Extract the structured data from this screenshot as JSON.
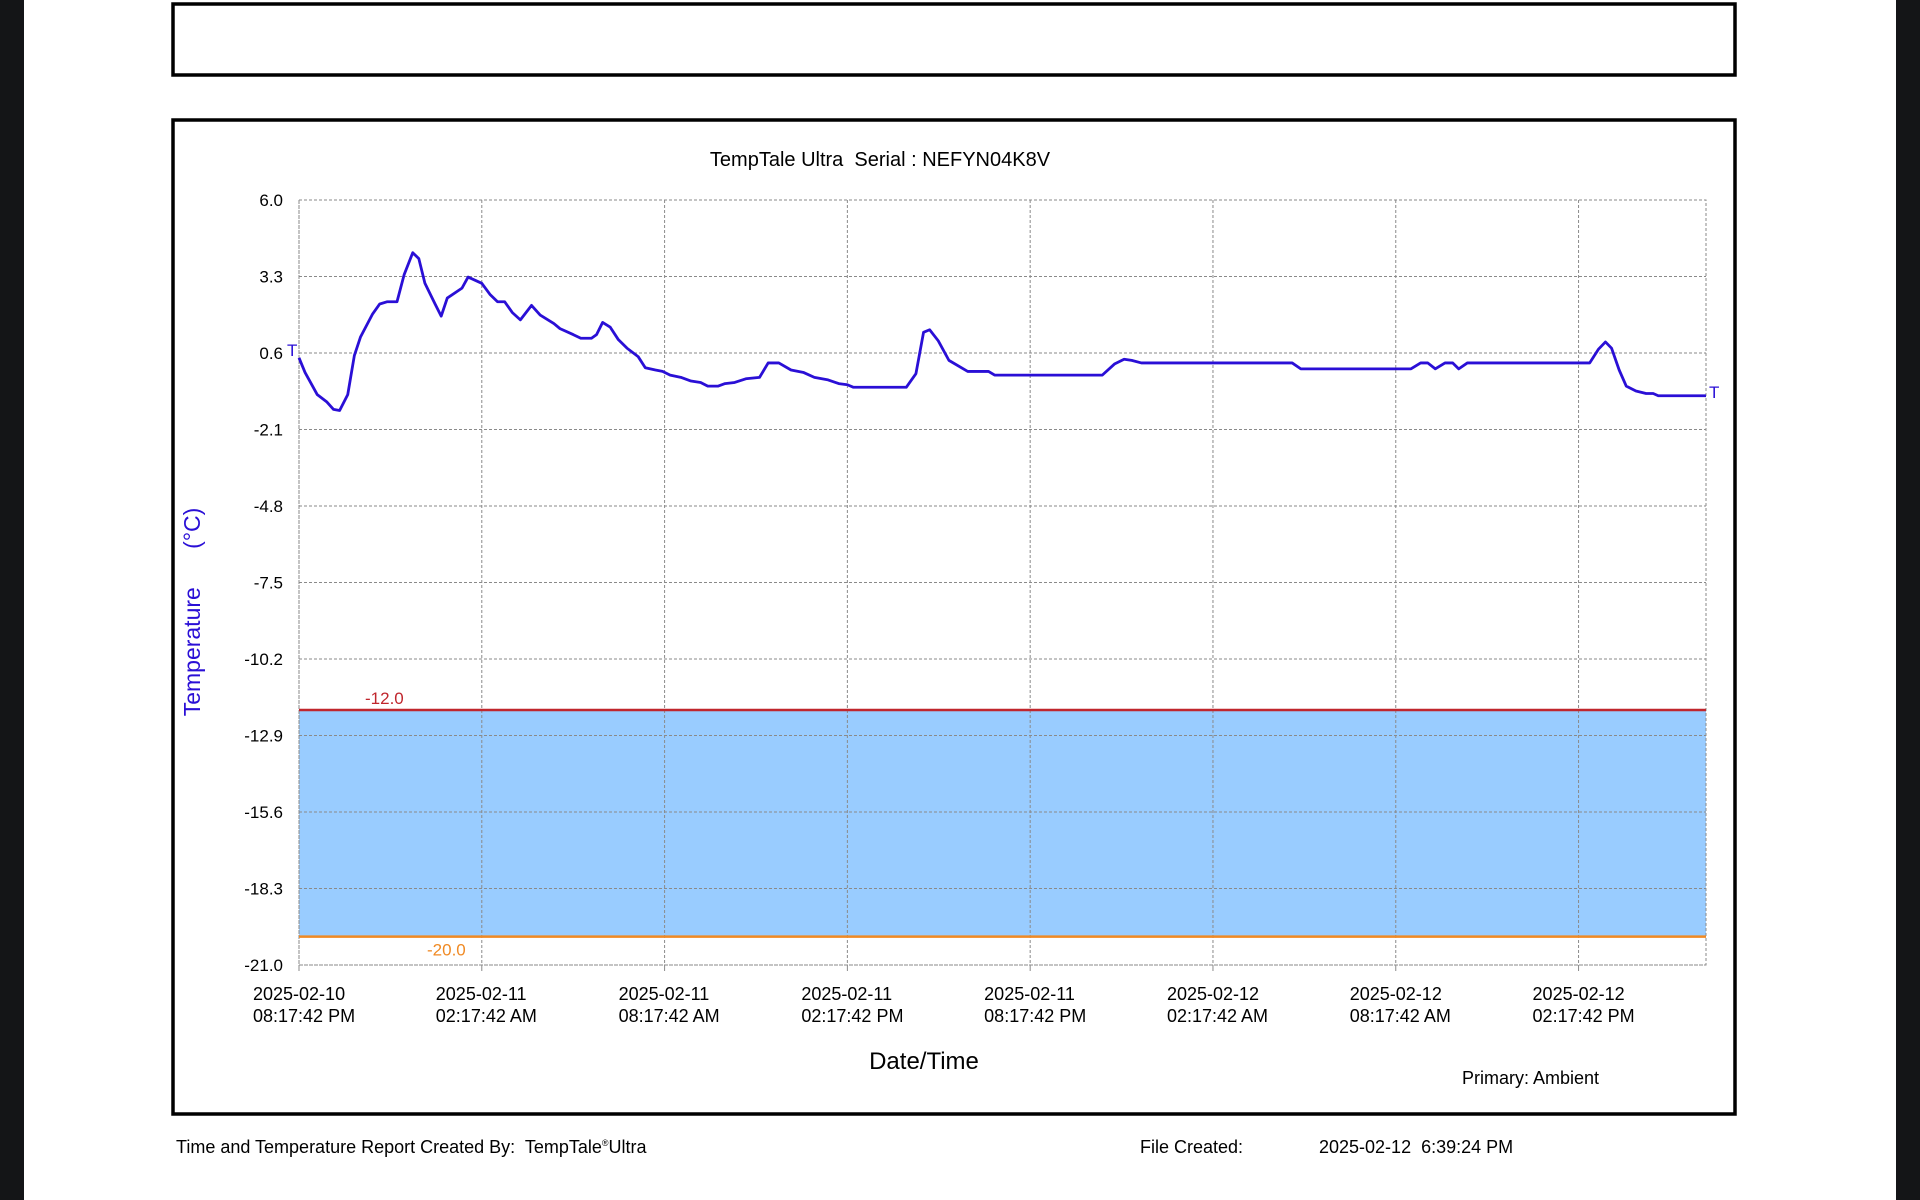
{
  "chart_data": {
    "type": "line",
    "title": "TempTale Ultra  Serial : NEFYN04K8V",
    "xlabel": "Date/Time",
    "ylabel": "Temperature      (°C)",
    "end_marker": "T",
    "grid": true,
    "ylim": [
      -21,
      6
    ],
    "yticks": [
      {
        "value": 6,
        "label": "6.0"
      },
      3.3,
      0.6,
      -2.1,
      -4.8,
      -7.5,
      -10.2,
      -12.9,
      -15.6,
      -18.3,
      {
        "value": -21,
        "label": "-21.0"
      }
    ],
    "xlim": [
      "2025-02-10 20:17:42",
      "2025-02-12 18:28:42"
    ],
    "xticks": [
      {
        "value": "2025-02-10 20:17:42",
        "label": "2025-02-10 08:17:42 PM"
      },
      {
        "value": "2025-02-11 02:17:42",
        "label": "2025-02-11 02:17:42 AM"
      },
      {
        "value": "2025-02-11 08:17:42",
        "label": "2025-02-11 08:17:42 AM"
      },
      {
        "value": "2025-02-11 14:17:42",
        "label": "2025-02-11 02:17:42 PM"
      },
      {
        "value": "2025-02-11 20:17:42",
        "label": "2025-02-11 08:17:42 PM"
      },
      {
        "value": "2025-02-12 02:17:42",
        "label": "2025-02-12 02:17:42 AM"
      },
      {
        "value": "2025-02-12 08:17:42",
        "label": "2025-02-12 08:17:42 AM"
      },
      {
        "value": "2025-02-12 14:17:42",
        "label": "2025-02-12 02:17:42 PM"
      }
    ],
    "limits": [
      {
        "value": -12,
        "label": "-12.0",
        "color": "#c0262d"
      },
      {
        "value": -20,
        "label": "-20.0",
        "color": "#f08a24"
      }
    ],
    "band_color": "#99ccff",
    "series": [
      {
        "name": "Primary: Ambient",
        "color": "#2a0fd6",
        "x": [
          "2025-02-10 20:17:42",
          "2025-02-10 20:29:42",
          "2025-02-10 20:53:42",
          "2025-02-10 21:12:42",
          "2025-02-10 21:25:42",
          "2025-02-10 21:37:42",
          "2025-02-10 21:53:42",
          "2025-02-10 22:06:42",
          "2025-02-10 22:18:42",
          "2025-02-10 22:42:42",
          "2025-02-10 22:56:42",
          "2025-02-10 23:11:42",
          "2025-02-10 23:30:42",
          "2025-02-10 23:44:42",
          "2025-02-11 00:01:42",
          "2025-02-11 00:13:42",
          "2025-02-11 00:25:42",
          "2025-02-11 00:45:42",
          "2025-02-11 00:57:42",
          "2025-02-11 01:09:42",
          "2025-02-11 01:38:42",
          "2025-02-11 01:50:42",
          "2025-02-11 02:17:42",
          "2025-02-11 02:33:42",
          "2025-02-11 02:48:42",
          "2025-02-11 03:02:42",
          "2025-02-11 03:17:42",
          "2025-02-11 03:33:42",
          "2025-02-11 03:55:42",
          "2025-02-11 04:12:42",
          "2025-02-11 04:39:42",
          "2025-02-11 04:51:42",
          "2025-02-11 05:17:42",
          "2025-02-11 05:32:42",
          "2025-02-11 05:53:42",
          "2025-02-11 06:03:42",
          "2025-02-11 06:15:42",
          "2025-02-11 06:30:42",
          "2025-02-11 06:46:42",
          "2025-02-11 07:03:42",
          "2025-02-11 07:25:42",
          "2025-02-11 07:39:42",
          "2025-02-11 07:59:42",
          "2025-02-11 08:13:42",
          "2025-02-11 08:28:42",
          "2025-02-11 08:49:42",
          "2025-02-11 09:09:42",
          "2025-02-11 09:28:42",
          "2025-02-11 09:42:42",
          "2025-02-11 10:02:42",
          "2025-02-11 10:16:42",
          "2025-02-11 10:35:42",
          "2025-02-11 10:57:42",
          "2025-02-11 11:24:42",
          "2025-02-11 11:41:42",
          "2025-02-11 12:02:42",
          "2025-02-11 12:26:42",
          "2025-02-11 12:51:42",
          "2025-02-11 13:12:42",
          "2025-02-11 13:39:42",
          "2025-02-11 14:00:42",
          "2025-02-11 14:17:42",
          "2025-02-11 14:29:42",
          "2025-02-11 16:13:42",
          "2025-02-11 16:32:42",
          "2025-02-11 16:47:42",
          "2025-02-11 16:59:42",
          "2025-02-11 17:16:42",
          "2025-02-11 17:37:42",
          "2025-02-11 18:14:42",
          "2025-02-11 18:55:42",
          "2025-02-11 19:07:42",
          "2025-02-11 22:39:42",
          "2025-02-11 23:03:42",
          "2025-02-11 23:22:42",
          "2025-02-11 23:37:42",
          "2025-02-11 23:56:42",
          "2025-02-12 04:53:42",
          "2025-02-12 05:10:42",
          "2025-02-12 08:47:42",
          "2025-02-12 09:06:42",
          "2025-02-12 09:20:42",
          "2025-02-12 09:35:42",
          "2025-02-12 09:54:42",
          "2025-02-12 10:09:42",
          "2025-02-12 10:21:42",
          "2025-02-12 10:38:42",
          "2025-02-12 14:39:42",
          "2025-02-12 14:56:42",
          "2025-02-12 15:10:42",
          "2025-02-12 15:22:42",
          "2025-02-12 15:37:42",
          "2025-02-12 15:51:42",
          "2025-02-12 16:10:42",
          "2025-02-12 16:30:42",
          "2025-02-12 16:44:42",
          "2025-02-12 16:54:42",
          "2025-02-12 18:28:42"
        ],
        "values": [
          0.43,
          -0.09,
          -0.87,
          -1.13,
          -1.39,
          -1.43,
          -0.87,
          0.51,
          1.16,
          1.98,
          2.33,
          2.41,
          2.41,
          3.36,
          4.14,
          3.93,
          3.06,
          2.33,
          1.9,
          2.54,
          2.89,
          3.28,
          3.06,
          2.67,
          2.41,
          2.41,
          2.03,
          1.77,
          2.28,
          1.94,
          1.64,
          1.46,
          1.25,
          1.12,
          1.12,
          1.25,
          1.68,
          1.51,
          1.07,
          0.77,
          0.47,
          0.08,
          0,
          -0.05,
          -0.18,
          -0.26,
          -0.39,
          -0.44,
          -0.57,
          -0.57,
          -0.48,
          -0.44,
          -0.31,
          -0.26,
          0.25,
          0.25,
          0,
          -0.09,
          -0.26,
          -0.35,
          -0.48,
          -0.52,
          -0.61,
          -0.61,
          -0.13,
          1.33,
          1.42,
          1.03,
          0.34,
          -0.05,
          -0.05,
          -0.18,
          -0.18,
          0.21,
          0.38,
          0.34,
          0.25,
          0.25,
          0.04,
          0.04,
          0.25,
          0.25,
          0.04,
          0.25,
          0.25,
          0.04,
          0.25,
          0.25,
          0.73,
          0.99,
          0.77,
          0,
          -0.57,
          -0.74,
          -0.83,
          -0.83,
          -0.91,
          -0.91
        ]
      }
    ]
  },
  "footer": {
    "created_by_label": "Time and Temperature Report Created By:  TempTale",
    "registered_mark": "®",
    "product": "Ultra",
    "file_created_label": "File Created:",
    "file_created_value": "2025-02-12  6:39:24 PM"
  }
}
